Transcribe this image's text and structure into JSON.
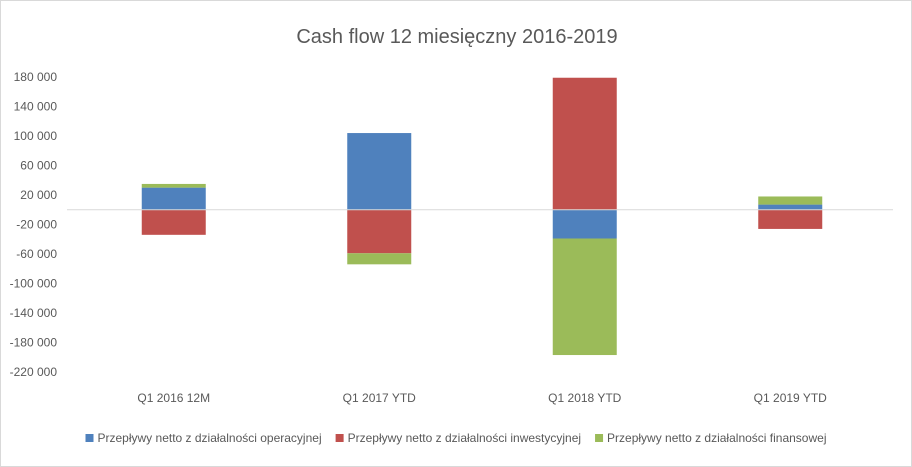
{
  "chart_data": {
    "type": "bar",
    "stacked": true,
    "title": "Cash flow 12 miesięczny  2016-2019",
    "xlabel": "",
    "ylabel": "",
    "categories": [
      "Q1 2016 12M",
      "Q1 2017 YTD",
      "Q1 2018 YTD",
      "Q1 2019 YTD"
    ],
    "series": [
      {
        "name": "Przepływy netto z działalności operacyjnej",
        "color": "#4f81bd",
        "values": [
          30000,
          104000,
          -39000,
          7000
        ]
      },
      {
        "name": "Przepływy netto z działalności inwestycyjnej",
        "color": "#c0504d",
        "values": [
          -34000,
          -59000,
          179000,
          -26000
        ]
      },
      {
        "name": "Przepływy netto z działalności finansowej",
        "color": "#9bbb59",
        "values": [
          5000,
          -15000,
          -158000,
          11000
        ]
      }
    ],
    "y_ticks": [
      180000,
      140000,
      100000,
      60000,
      20000,
      -20000,
      -60000,
      -100000,
      -140000,
      -180000,
      -220000
    ],
    "y_tick_labels": [
      "180 000",
      "140 000",
      "100 000",
      "60 000",
      "20 000",
      "-20 000",
      "-60 000",
      "-100 000",
      "-140 000",
      "-180 000",
      "-220 000"
    ],
    "ylim": [
      -220000,
      180000
    ],
    "grid": false,
    "legend_position": "bottom"
  }
}
